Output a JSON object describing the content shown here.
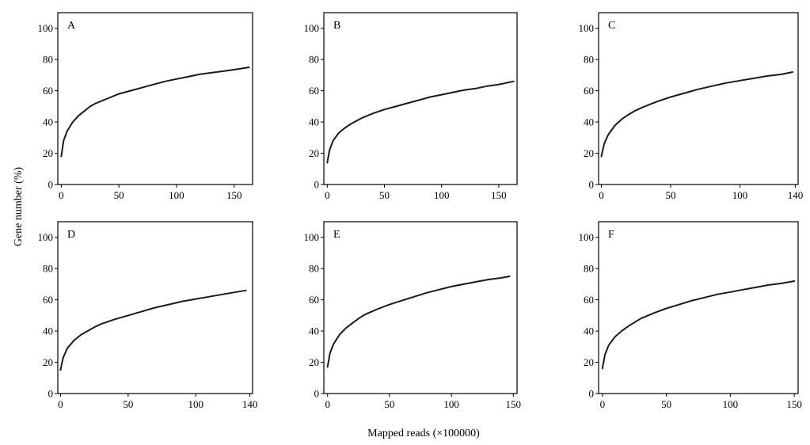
{
  "figure": {
    "ylabel": "Gene number (%)",
    "xlabel": "Mapped reads (×100000)"
  },
  "chart_data": [
    {
      "type": "line",
      "panel": "A",
      "ylim": [
        0,
        110
      ],
      "xlim": [
        -3,
        166
      ],
      "xticks": [
        0,
        50,
        100,
        150
      ],
      "yticks": [
        0,
        20,
        40,
        60,
        80,
        100
      ],
      "x": [
        0,
        2,
        5,
        10,
        15,
        20,
        25,
        30,
        40,
        50,
        60,
        70,
        80,
        90,
        100,
        110,
        120,
        130,
        140,
        150,
        163
      ],
      "y": [
        18,
        28,
        34,
        40,
        44,
        47,
        50,
        52,
        55,
        58,
        60,
        62,
        64,
        66,
        67.5,
        69,
        70.5,
        71.5,
        72.5,
        73.5,
        75
      ]
    },
    {
      "type": "line",
      "panel": "B",
      "ylim": [
        0,
        110
      ],
      "xlim": [
        -3,
        166
      ],
      "xticks": [
        0,
        50,
        100,
        150
      ],
      "yticks": [
        0,
        20,
        40,
        60,
        80,
        100
      ],
      "x": [
        0,
        2,
        5,
        10,
        15,
        20,
        25,
        30,
        40,
        50,
        60,
        70,
        80,
        90,
        100,
        110,
        120,
        130,
        140,
        150,
        163
      ],
      "y": [
        14,
        22,
        28,
        33,
        36,
        38.5,
        40.5,
        42.5,
        45.5,
        48,
        50,
        52,
        54,
        56,
        57.5,
        59,
        60.5,
        61.5,
        63,
        64,
        66
      ]
    },
    {
      "type": "line",
      "panel": "C",
      "ylim": [
        0,
        110
      ],
      "xlim": [
        -2,
        142
      ],
      "xticks": [
        0,
        50,
        100,
        140
      ],
      "yticks": [
        0,
        20,
        40,
        60,
        80,
        100
      ],
      "x": [
        0,
        2,
        5,
        10,
        15,
        20,
        25,
        30,
        40,
        50,
        60,
        70,
        80,
        90,
        100,
        110,
        120,
        130,
        138
      ],
      "y": [
        18,
        26,
        32,
        38,
        42,
        45,
        47.5,
        49.5,
        53,
        56,
        58.5,
        61,
        63,
        65,
        66.5,
        68,
        69.5,
        70.5,
        72
      ]
    },
    {
      "type": "line",
      "panel": "D",
      "ylim": [
        0,
        110
      ],
      "xlim": [
        -2,
        142
      ],
      "xticks": [
        0,
        50,
        100,
        140
      ],
      "yticks": [
        0,
        20,
        40,
        60,
        80,
        100
      ],
      "x": [
        0,
        2,
        5,
        10,
        15,
        20,
        25,
        30,
        40,
        50,
        60,
        70,
        80,
        90,
        100,
        110,
        120,
        130,
        137
      ],
      "y": [
        15,
        23,
        29,
        34,
        37.5,
        40,
        42.5,
        44.5,
        47.5,
        50,
        52.5,
        55,
        57,
        59,
        60.5,
        62,
        63.5,
        65,
        66
      ]
    },
    {
      "type": "line",
      "panel": "E",
      "ylim": [
        0,
        110
      ],
      "xlim": [
        -3,
        153
      ],
      "xticks": [
        0,
        50,
        100,
        150
      ],
      "yticks": [
        0,
        20,
        40,
        60,
        80,
        100
      ],
      "x": [
        0,
        2,
        5,
        10,
        15,
        20,
        25,
        30,
        40,
        50,
        60,
        70,
        80,
        90,
        100,
        110,
        120,
        130,
        140,
        147
      ],
      "y": [
        17,
        26,
        32,
        38,
        42,
        45,
        48,
        50.5,
        54,
        57,
        59.5,
        62,
        64.5,
        66.5,
        68.5,
        70,
        71.5,
        73,
        74,
        75
      ]
    },
    {
      "type": "line",
      "panel": "F",
      "ylim": [
        0,
        110
      ],
      "xlim": [
        -3,
        153
      ],
      "xticks": [
        0,
        50,
        100,
        150
      ],
      "yticks": [
        0,
        20,
        40,
        60,
        80,
        100
      ],
      "x": [
        0,
        2,
        5,
        10,
        15,
        20,
        25,
        30,
        40,
        50,
        60,
        70,
        80,
        90,
        100,
        110,
        120,
        130,
        140,
        150
      ],
      "y": [
        16,
        25,
        31,
        36.5,
        40,
        43,
        45.5,
        48,
        51.5,
        54.5,
        57,
        59.5,
        61.5,
        63.5,
        65,
        66.5,
        68,
        69.5,
        70.5,
        72
      ]
    }
  ]
}
